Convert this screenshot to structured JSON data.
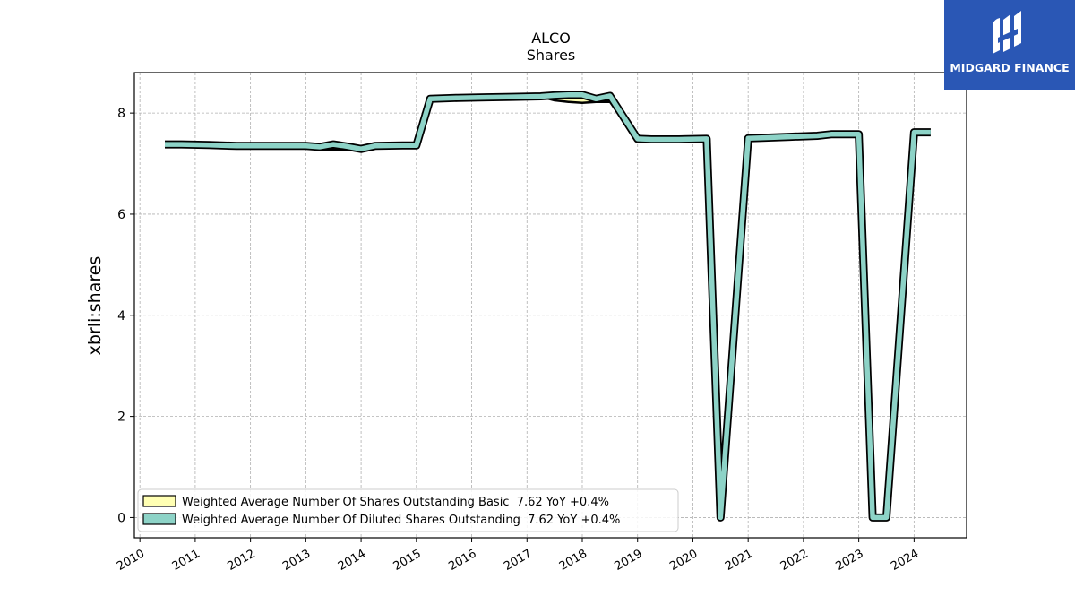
{
  "brand": {
    "name": "MIDGARD FINANCE",
    "color": "#2a57b5"
  },
  "chart_data": {
    "type": "line",
    "title": "ALCO",
    "subtitle": "Shares",
    "xlabel": "",
    "ylabel": "xbrli:shares",
    "xlim": [
      2009.9,
      2024.95
    ],
    "ylim": [
      -0.4,
      8.8
    ],
    "yticks": [
      0,
      2,
      4,
      6,
      8
    ],
    "xticks": [
      2010,
      2011,
      2012,
      2013,
      2014,
      2015,
      2016,
      2017,
      2018,
      2019,
      2020,
      2021,
      2022,
      2023,
      2024
    ],
    "grid": true,
    "legend_position": "lower-left",
    "series": [
      {
        "name": "Weighted Average Number Of Shares Outstanding Basic  7.62 YoY +0.4%",
        "color": "#ffffb3",
        "x": [
          2010.45,
          2010.75,
          2011.25,
          2011.75,
          2012.25,
          2012.75,
          2013.0,
          2013.25,
          2013.5,
          2013.75,
          2014.0,
          2014.25,
          2014.75,
          2015.0,
          2015.25,
          2015.75,
          2016.25,
          2016.75,
          2017.25,
          2017.5,
          2017.75,
          2018.0,
          2018.25,
          2018.5,
          2019.0,
          2019.25,
          2019.75,
          2020.25,
          2020.5,
          2021.0,
          2021.25,
          2021.75,
          2022.25,
          2022.5,
          2022.75,
          2023.0,
          2023.25,
          2023.5,
          2024.0,
          2024.3
        ],
        "y": [
          7.36,
          7.35,
          7.34,
          7.32,
          7.32,
          7.32,
          7.32,
          7.27,
          7.28,
          7.27,
          7.25,
          7.32,
          7.33,
          7.34,
          8.25,
          8.27,
          8.29,
          8.3,
          8.32,
          8.25,
          8.22,
          8.2,
          8.22,
          8.22,
          7.46,
          7.46,
          7.46,
          7.47,
          0.0,
          7.47,
          7.48,
          7.5,
          7.52,
          7.55,
          7.56,
          7.56,
          0.0,
          0.0,
          7.6,
          7.62
        ]
      },
      {
        "name": "Weighted Average Number Of Diluted Shares Outstanding  7.62 YoY +0.4%",
        "color": "#8dd3c7",
        "x": [
          2010.45,
          2010.75,
          2011.25,
          2011.75,
          2012.25,
          2012.75,
          2013.0,
          2013.25,
          2013.5,
          2013.75,
          2014.0,
          2014.25,
          2014.75,
          2015.0,
          2015.25,
          2015.75,
          2016.25,
          2016.75,
          2017.25,
          2017.5,
          2017.75,
          2018.0,
          2018.25,
          2018.5,
          2019.0,
          2019.25,
          2019.75,
          2020.25,
          2020.5,
          2021.0,
          2021.25,
          2021.75,
          2022.25,
          2022.5,
          2022.75,
          2023.0,
          2023.25,
          2023.5,
          2024.0,
          2024.3
        ],
        "y": [
          7.38,
          7.38,
          7.37,
          7.35,
          7.35,
          7.35,
          7.35,
          7.33,
          7.38,
          7.34,
          7.29,
          7.35,
          7.36,
          7.36,
          8.28,
          8.3,
          8.31,
          8.32,
          8.33,
          8.35,
          8.36,
          8.36,
          8.28,
          8.34,
          7.49,
          7.48,
          7.48,
          7.49,
          0.0,
          7.5,
          7.51,
          7.53,
          7.55,
          7.58,
          7.58,
          7.58,
          0.0,
          0.0,
          7.62,
          7.62
        ]
      }
    ]
  }
}
